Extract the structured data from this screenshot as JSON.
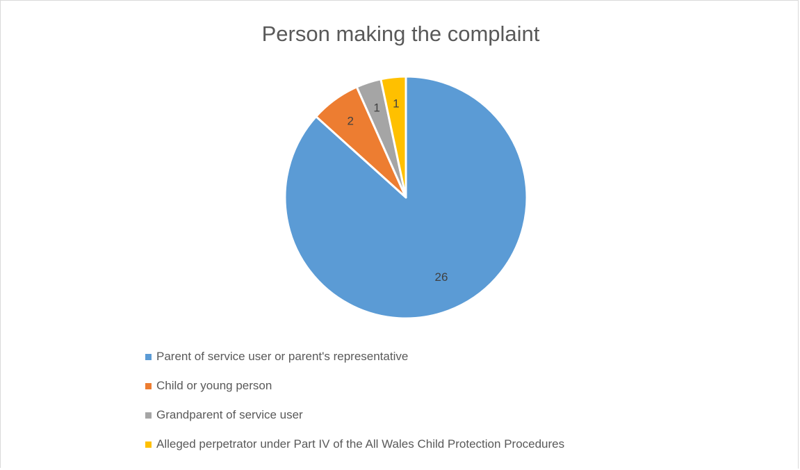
{
  "chart_data": {
    "type": "pie",
    "title": "Person making the complaint",
    "categories": [
      "Parent of service user or parent's representative",
      "Child or young person",
      "Grandparent of service user",
      "Alleged perpetrator under Part IV of the All Wales Child Protection Procedures"
    ],
    "values": [
      26,
      2,
      1,
      1
    ],
    "data_labels": [
      "26",
      "2",
      "1",
      "1"
    ],
    "colors": [
      "#5B9BD5",
      "#ED7D31",
      "#A5A5A5",
      "#FFC000"
    ],
    "legend_position": "bottom",
    "start_angle": "12 o'clock",
    "direction": "clockwise"
  }
}
